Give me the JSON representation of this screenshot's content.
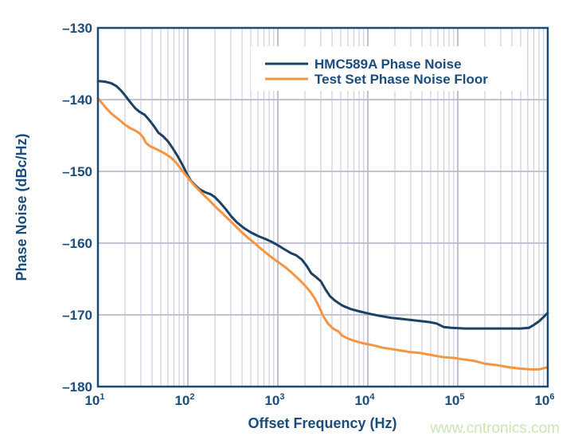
{
  "figure": {
    "background": "#ffffff",
    "watermark": "www.cntronics.com",
    "watermark_color": "#cbe6b5"
  },
  "colors": {
    "navy_curve": "#1b4265",
    "orange_curve": "#f79440",
    "axis_frame": "#1d4a74",
    "text_navy": "#1a4c7c",
    "grid_major": "#b9bacd",
    "grid_minor": "#c9cada",
    "legend_background": "#ffffff"
  },
  "chart_data": {
    "type": "line",
    "title": "",
    "xlabel": "Offset Frequency (Hz)",
    "ylabel": "Phase Noise (dBc/Hz)",
    "x_scale": "log",
    "xlim": [
      10,
      1000000
    ],
    "ylim": [
      -180,
      -130
    ],
    "grid": "vertical log decades with minor lines 2-9, horizontal every 10 dB",
    "legend_position": "top-right inside plot",
    "x_ticks": [
      {
        "base": "10",
        "exp": "1"
      },
      {
        "base": "10",
        "exp": "2"
      },
      {
        "base": "10",
        "exp": "3"
      },
      {
        "base": "10",
        "exp": "4"
      },
      {
        "base": "10",
        "exp": "5"
      },
      {
        "base": "10",
        "exp": "6"
      }
    ],
    "y_tick_labels": [
      "–130",
      "–140",
      "–150",
      "–160",
      "–170",
      "–180"
    ],
    "y_tick_values": [
      -130,
      -140,
      -150,
      -160,
      -170,
      -180
    ],
    "series": [
      {
        "name": "HMC589A Phase Noise",
        "color": "#1b4265",
        "points": [
          [
            10,
            -137.4
          ],
          [
            12,
            -137.5
          ],
          [
            14,
            -137.7
          ],
          [
            16,
            -138.1
          ],
          [
            18,
            -138.7
          ],
          [
            20,
            -139.4
          ],
          [
            23,
            -140.4
          ],
          [
            26,
            -141.2
          ],
          [
            29,
            -141.7
          ],
          [
            33,
            -142.1
          ],
          [
            37,
            -142.8
          ],
          [
            42,
            -143.7
          ],
          [
            47,
            -144.6
          ],
          [
            53,
            -145.1
          ],
          [
            60,
            -145.8
          ],
          [
            68,
            -146.8
          ],
          [
            78,
            -148.0
          ],
          [
            88,
            -149.2
          ],
          [
            98,
            -150.4
          ],
          [
            108,
            -151.3
          ],
          [
            120,
            -151.9
          ],
          [
            135,
            -152.5
          ],
          [
            155,
            -152.9
          ],
          [
            180,
            -153.2
          ],
          [
            200,
            -153.6
          ],
          [
            230,
            -154.4
          ],
          [
            265,
            -155.3
          ],
          [
            305,
            -156.3
          ],
          [
            350,
            -157.1
          ],
          [
            420,
            -157.9
          ],
          [
            500,
            -158.5
          ],
          [
            600,
            -159.0
          ],
          [
            720,
            -159.4
          ],
          [
            850,
            -159.8
          ],
          [
            1000,
            -160.3
          ],
          [
            1200,
            -160.9
          ],
          [
            1400,
            -161.4
          ],
          [
            1600,
            -161.7
          ],
          [
            1850,
            -162.3
          ],
          [
            2100,
            -163.2
          ],
          [
            2350,
            -164.2
          ],
          [
            2700,
            -164.8
          ],
          [
            3000,
            -165.3
          ],
          [
            3400,
            -166.5
          ],
          [
            3800,
            -167.4
          ],
          [
            4300,
            -168.0
          ],
          [
            5200,
            -168.7
          ],
          [
            6500,
            -169.2
          ],
          [
            8000,
            -169.5
          ],
          [
            10000,
            -169.8
          ],
          [
            13000,
            -170.1
          ],
          [
            18000,
            -170.4
          ],
          [
            25000,
            -170.6
          ],
          [
            35000,
            -170.8
          ],
          [
            48000,
            -171.0
          ],
          [
            58000,
            -171.2
          ],
          [
            70000,
            -171.7
          ],
          [
            85000,
            -171.8
          ],
          [
            120000,
            -171.9
          ],
          [
            200000,
            -171.9
          ],
          [
            350000,
            -171.9
          ],
          [
            500000,
            -171.9
          ],
          [
            620000,
            -171.8
          ],
          [
            700000,
            -171.4
          ],
          [
            800000,
            -170.9
          ],
          [
            900000,
            -170.3
          ],
          [
            1000000,
            -169.7
          ]
        ]
      },
      {
        "name": "Test Set Phase Noise Floor",
        "color": "#f79440",
        "points": [
          [
            10,
            -139.8
          ],
          [
            12,
            -141.0
          ],
          [
            14,
            -141.9
          ],
          [
            16,
            -142.5
          ],
          [
            18,
            -143.0
          ],
          [
            20,
            -143.5
          ],
          [
            23,
            -144.0
          ],
          [
            26,
            -144.3
          ],
          [
            29,
            -144.7
          ],
          [
            32,
            -145.3
          ],
          [
            34,
            -146.0
          ],
          [
            38,
            -146.5
          ],
          [
            43,
            -146.8
          ],
          [
            50,
            -147.2
          ],
          [
            57,
            -147.6
          ],
          [
            65,
            -148.1
          ],
          [
            73,
            -148.7
          ],
          [
            82,
            -149.5
          ],
          [
            92,
            -150.3
          ],
          [
            102,
            -151.0
          ],
          [
            115,
            -151.8
          ],
          [
            130,
            -152.5
          ],
          [
            150,
            -153.3
          ],
          [
            175,
            -154.1
          ],
          [
            205,
            -155.0
          ],
          [
            240,
            -155.8
          ],
          [
            280,
            -156.6
          ],
          [
            330,
            -157.5
          ],
          [
            390,
            -158.4
          ],
          [
            460,
            -159.2
          ],
          [
            550,
            -160.0
          ],
          [
            650,
            -160.8
          ],
          [
            780,
            -161.6
          ],
          [
            900,
            -162.2
          ],
          [
            1050,
            -162.8
          ],
          [
            1250,
            -163.5
          ],
          [
            1450,
            -164.2
          ],
          [
            1700,
            -165.0
          ],
          [
            2000,
            -165.9
          ],
          [
            2300,
            -166.8
          ],
          [
            2600,
            -167.8
          ],
          [
            2900,
            -169.0
          ],
          [
            3200,
            -170.2
          ],
          [
            3600,
            -171.2
          ],
          [
            4100,
            -171.9
          ],
          [
            4700,
            -172.3
          ],
          [
            5200,
            -172.9
          ],
          [
            6000,
            -173.3
          ],
          [
            7000,
            -173.6
          ],
          [
            8500,
            -173.9
          ],
          [
            10000,
            -174.1
          ],
          [
            12000,
            -174.3
          ],
          [
            15000,
            -174.6
          ],
          [
            19000,
            -174.8
          ],
          [
            24000,
            -175.0
          ],
          [
            30000,
            -175.2
          ],
          [
            38000,
            -175.3
          ],
          [
            46000,
            -175.5
          ],
          [
            56000,
            -175.7
          ],
          [
            70000,
            -175.9
          ],
          [
            90000,
            -176.0
          ],
          [
            115000,
            -176.2
          ],
          [
            150000,
            -176.4
          ],
          [
            200000,
            -176.8
          ],
          [
            270000,
            -177.0
          ],
          [
            370000,
            -177.3
          ],
          [
            500000,
            -177.5
          ],
          [
            650000,
            -177.6
          ],
          [
            800000,
            -177.6
          ],
          [
            1000000,
            -177.3
          ]
        ]
      }
    ]
  }
}
